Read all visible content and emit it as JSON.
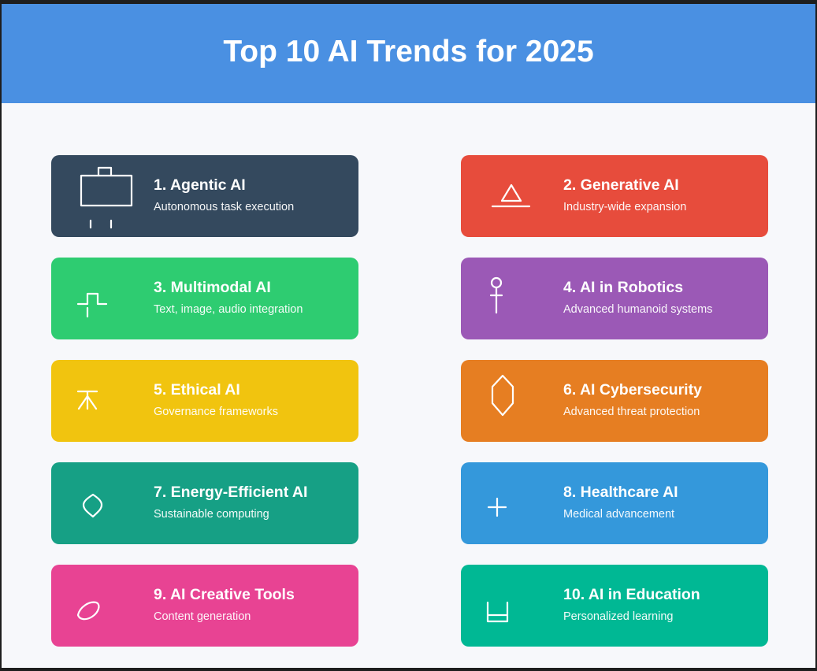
{
  "title": "Top 10 AI Trends for 2025",
  "colors": {
    "header": "#4a90e2",
    "background": "#f7f8fb"
  },
  "trends": [
    {
      "name": "1. Agentic AI",
      "description": "Autonomous task execution",
      "color": "#34495e",
      "icon": "robot-icon"
    },
    {
      "name": "2. Generative AI",
      "description": "Industry-wide expansion",
      "color": "#e74c3c",
      "icon": "triangle-icon"
    },
    {
      "name": "3. Multimodal AI",
      "description": "Text, image, audio integration",
      "color": "#2ecc71",
      "icon": "signal-icon"
    },
    {
      "name": "4. AI in Robotics",
      "description": "Advanced humanoid systems",
      "color": "#9b59b6",
      "icon": "humanoid-icon"
    },
    {
      "name": "5. Ethical AI",
      "description": "Governance frameworks",
      "color": "#f1c40f",
      "icon": "scale-icon"
    },
    {
      "name": "6. AI Cybersecurity",
      "description": "Advanced threat protection",
      "color": "#e67e22",
      "icon": "shield-icon"
    },
    {
      "name": "7. Energy-Efficient AI",
      "description": "Sustainable computing",
      "color": "#16a085",
      "icon": "leaf-icon"
    },
    {
      "name": "8. Healthcare AI",
      "description": "Medical advancement",
      "color": "#3498db",
      "icon": "medical-cross-icon"
    },
    {
      "name": "9. AI Creative Tools",
      "description": "Content generation",
      "color": "#e84393",
      "icon": "brush-icon"
    },
    {
      "name": "10. AI in Education",
      "description": "Personalized learning",
      "color": "#00b894",
      "icon": "book-icon"
    }
  ]
}
